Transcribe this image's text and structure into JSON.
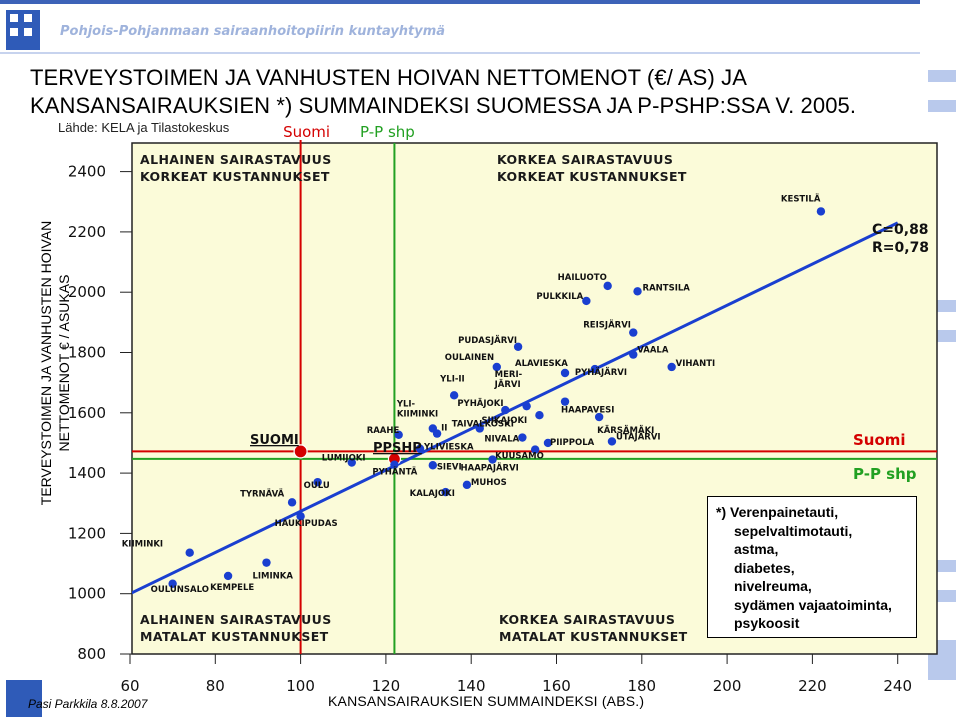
{
  "header": {
    "banner_text": "Pohjois-Pohjanmaan sairaanhoitopiirin kuntayhtymä"
  },
  "title_line1": "TERVEYSTOIMEN JA VANHUSTEN HOIVAN NETTOMENOT (€/ AS) JA",
  "title_line2": "KANSANSAIRAUKSIEN *) SUMMAINDEKSI SUOMESSA JA P-PSHP:SSA V. 2005.",
  "source": "Lähde: KELA ja Tilastokeskus",
  "top_legend": {
    "suomi": "Suomi",
    "pp": "P-P shp"
  },
  "ylabel_line1": "TERVEYSTOIMEN JA VANHUSTEN HOIVAN",
  "ylabel_line2": "NETTOMENOT € / ASUKAS",
  "xlabel": "KANSANSAIRAUKSIEN SUMMAINDEKSI (ABS.)",
  "author": "Pasi Parkkila 8.8.2007",
  "note_lines": [
    "*) Verenpainetauti,",
    "sepelvaltimotauti,",
    "astma,",
    "diabetes,",
    "nivelreuma,",
    "sydämen vajaatoiminta,",
    "psykoosit"
  ],
  "colors": {
    "plot_bg": "#fbfbd9",
    "suomi": "#d40000",
    "pp": "#22a022",
    "trend": "#1a3fd0",
    "points": "#1a3fd0",
    "text_dark": "#1a1a1a"
  },
  "chart_data": {
    "type": "scatter",
    "xlabel": "KANSANSAIRAUKSIEN SUMMAINDEKSI (ABS.)",
    "ylabel": "TERVEYSTOIMEN JA VANHUSTEN HOIVAN NETTOMENOT € / ASUKAS",
    "xlim": [
      60,
      240
    ],
    "ylim": [
      800,
      2400
    ],
    "xticks": [
      60,
      80,
      100,
      120,
      140,
      160,
      180,
      200,
      220,
      240
    ],
    "yticks": [
      800,
      1000,
      1200,
      1400,
      1600,
      1800,
      2000,
      2200,
      2400
    ],
    "grid": false,
    "quadrant_labels": {
      "top_left": [
        "ALHAINEN SAIRASTAVUUS",
        "KORKEAT KUSTANNUKSET"
      ],
      "top_right": [
        "KORKEA SAIRASTAVUUS",
        "KORKEAT KUSTANNUKSET"
      ],
      "bottom_left": [
        "ALHAINEN SAIRASTAVUUS",
        "MATALAT KUSTANNUKSET"
      ],
      "bottom_right": [
        "KORKEA SAIRASTAVUUS",
        "MATALAT KUSTANNUKSET"
      ]
    },
    "stats": [
      "C=0,88",
      "R=0,78"
    ],
    "reference_lines": [
      {
        "name": "Suomi",
        "x": 100,
        "y": 1472
      },
      {
        "name": "P-P shp",
        "x": 122,
        "y": 1447
      }
    ],
    "reference_labels": {
      "suomi_inplot": "SUOMI",
      "pp_inplot": "PPSHP",
      "suomi_right": "Suomi",
      "pp_right": "P-P shp"
    },
    "trendline": {
      "x": [
        60,
        240
      ],
      "y": [
        1000,
        2230
      ]
    },
    "points": [
      {
        "name": "KESTILÄ",
        "x": 222,
        "y": 2268
      },
      {
        "name": "HAILUOTO",
        "x": 172,
        "y": 2021
      },
      {
        "name": "PULKKILA",
        "x": 167,
        "y": 1971
      },
      {
        "name": "RANTSILA",
        "x": 179,
        "y": 2003
      },
      {
        "name": "REISJÄRVI",
        "x": 178,
        "y": 1866
      },
      {
        "name": "VAALA",
        "x": 178,
        "y": 1793
      },
      {
        "name": "VIHANTI",
        "x": 187,
        "y": 1752
      },
      {
        "name": "PYHÄJÄRVI",
        "x": 169,
        "y": 1745
      },
      {
        "name": "PUDASJÄRVI",
        "x": 151,
        "y": 1819
      },
      {
        "name": "OULAINEN",
        "x": 146,
        "y": 1752
      },
      {
        "name": "ALAVIESKA",
        "x": 162,
        "y": 1732
      },
      {
        "name": "MERI-JÄRVI",
        "x": 153,
        "y": 1622
      },
      {
        "name": "HAAPAVESI",
        "x": 162,
        "y": 1637
      },
      {
        "name": "YLI-II",
        "x": 136,
        "y": 1658
      },
      {
        "name": "PYHÄJOKI",
        "x": 148,
        "y": 1609
      },
      {
        "name": "SIIKAJOKI",
        "x": 156,
        "y": 1592
      },
      {
        "name": "KÄRSÄMÄKI",
        "x": 170,
        "y": 1586
      },
      {
        "name": "TAIVALKOSKI",
        "x": 142,
        "y": 1548
      },
      {
        "name": "NIVALA",
        "x": 152,
        "y": 1518
      },
      {
        "name": "PIIPPOLA",
        "x": 158,
        "y": 1500
      },
      {
        "name": "UTAJÄRVI",
        "x": 173,
        "y": 1505
      },
      {
        "name": "KUUSAMO",
        "x": 155,
        "y": 1478
      },
      {
        "name": "YLI-KIIMINKI",
        "x": 131,
        "y": 1548
      },
      {
        "name": "II",
        "x": 132,
        "y": 1531
      },
      {
        "name": "RAAHE",
        "x": 123,
        "y": 1527
      },
      {
        "name": "YLIVIESKA",
        "x": 128,
        "y": 1481
      },
      {
        "name": "HAAPAJÄRVI",
        "x": 145,
        "y": 1445
      },
      {
        "name": "LUMIJOKI",
        "x": 112,
        "y": 1435
      },
      {
        "name": "PYHÄNTÄ",
        "x": 122,
        "y": 1428
      },
      {
        "name": "SIEVI",
        "x": 131,
        "y": 1426
      },
      {
        "name": "MUHOS",
        "x": 139,
        "y": 1361
      },
      {
        "name": "KALAJOKI",
        "x": 134,
        "y": 1337
      },
      {
        "name": "OULU",
        "x": 104,
        "y": 1370
      },
      {
        "name": "TYRNÄVÄ",
        "x": 98,
        "y": 1303
      },
      {
        "name": "HAUKIPUDAS",
        "x": 100,
        "y": 1257
      },
      {
        "name": "KIIMINKI",
        "x": 74,
        "y": 1136
      },
      {
        "name": "LIMINKA",
        "x": 92,
        "y": 1103
      },
      {
        "name": "KEMPELE",
        "x": 83,
        "y": 1059
      },
      {
        "name": "OULUNSALO",
        "x": 70,
        "y": 1033
      }
    ]
  }
}
